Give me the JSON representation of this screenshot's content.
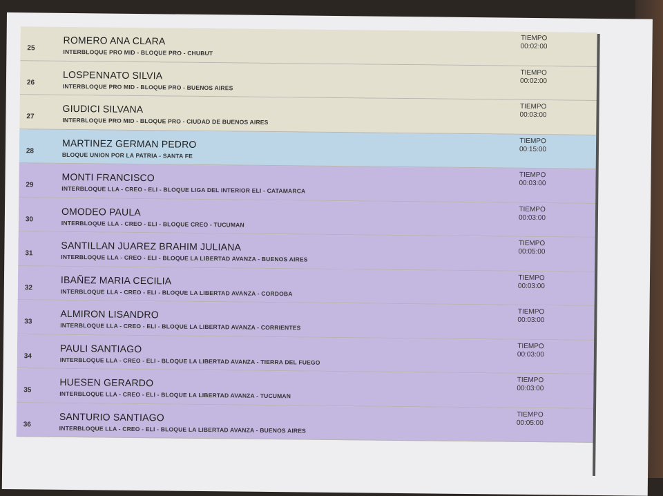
{
  "time_label": "TIEMPO",
  "rows": [
    {
      "num": "25",
      "name": "ROMERO ANA CLARA",
      "sub": "INTERBLOQUE PRO MID - BLOQUE PRO - CHUBUT",
      "time": "00:02:00",
      "color": "#e4e0cf"
    },
    {
      "num": "26",
      "name": "LOSPENNATO SILVIA",
      "sub": "INTERBLOQUE PRO MID - BLOQUE PRO - BUENOS AIRES",
      "time": "00:02:00",
      "color": "#e4e0cf"
    },
    {
      "num": "27",
      "name": "GIUDICI SILVANA",
      "sub": "INTERBLOQUE PRO MID - BLOQUE PRO - CIUDAD DE BUENOS AIRES",
      "time": "00:03:00",
      "color": "#e4e0cf"
    },
    {
      "num": "28",
      "name": "MARTINEZ GERMAN PEDRO",
      "sub": "BLOQUE UNION POR LA PATRIA - SANTA FE",
      "time": "00:15:00",
      "color": "#bcd6e8"
    },
    {
      "num": "29",
      "name": "MONTI FRANCISCO",
      "sub": "INTERBLOQUE LLA - CREO - ELI - BLOQUE LIGA DEL INTERIOR ELI - CATAMARCA",
      "time": "00:03:00",
      "color": "#c5b8e0"
    },
    {
      "num": "30",
      "name": "OMODEO PAULA",
      "sub": "INTERBLOQUE LLA - CREO - ELI - BLOQUE CREO - TUCUMAN",
      "time": "00:03:00",
      "color": "#c5b8e0"
    },
    {
      "num": "31",
      "name": "SANTILLAN JUAREZ BRAHIM JULIANA",
      "sub": "INTERBLOQUE LLA - CREO - ELI - BLOQUE LA LIBERTAD AVANZA - BUENOS AIRES",
      "time": "00:05:00",
      "color": "#c5b8e0"
    },
    {
      "num": "32",
      "name": "IBAÑEZ MARIA CECILIA",
      "sub": "INTERBLOQUE LLA - CREO - ELI - BLOQUE LA LIBERTAD AVANZA - CORDOBA",
      "time": "00:03:00",
      "color": "#c5b8e0"
    },
    {
      "num": "33",
      "name": "ALMIRON LISANDRO",
      "sub": "INTERBLOQUE LLA - CREO - ELI - BLOQUE LA LIBERTAD AVANZA - CORRIENTES",
      "time": "00:03:00",
      "color": "#c5b8e0"
    },
    {
      "num": "34",
      "name": "PAULI SANTIAGO",
      "sub": "INTERBLOQUE LLA - CREO - ELI - BLOQUE LA LIBERTAD AVANZA - TIERRA DEL FUEGO",
      "time": "00:03:00",
      "color": "#c5b8e0"
    },
    {
      "num": "35",
      "name": "HUESEN GERARDO",
      "sub": "INTERBLOQUE LLA - CREO - ELI - BLOQUE LA LIBERTAD AVANZA - TUCUMAN",
      "time": "00:03:00",
      "color": "#c5b8e0"
    },
    {
      "num": "36",
      "name": "SANTURIO SANTIAGO",
      "sub": "INTERBLOQUE LLA - CREO - ELI - BLOQUE LA LIBERTAD AVANZA - BUENOS AIRES",
      "time": "00:05:00",
      "color": "#c5b8e0"
    }
  ]
}
